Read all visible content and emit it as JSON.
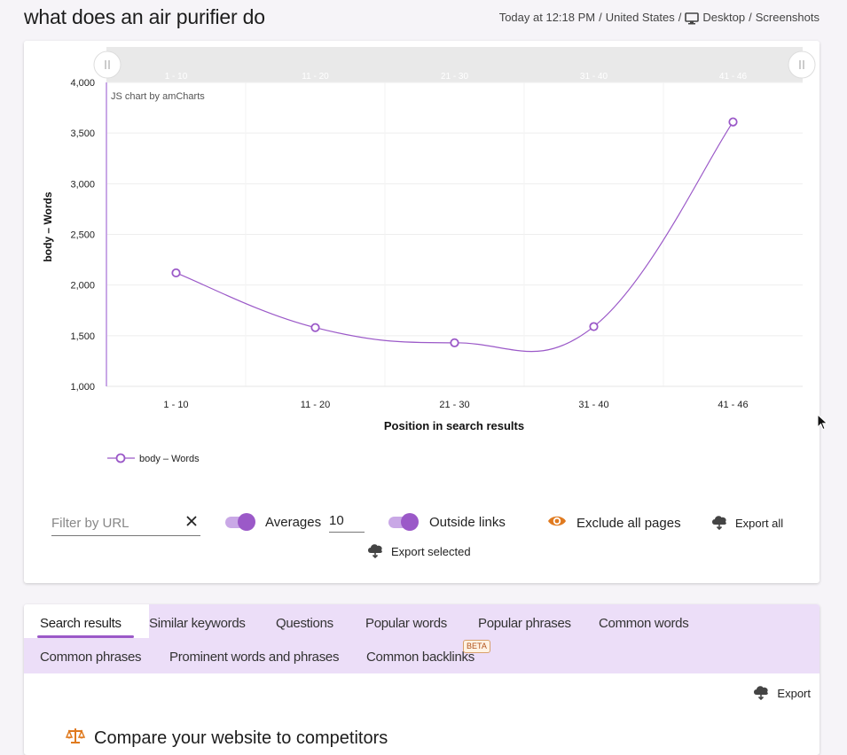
{
  "header": {
    "title": "what does an air purifier do",
    "meta_time": "Today at 12:18 PM",
    "meta_country": "United States",
    "meta_device": "Desktop",
    "meta_view": "Screenshots",
    "separator": "/"
  },
  "colors": {
    "accent": "#9b59c8",
    "accent_light": "#c9a8e6",
    "tab_bg": "#ecdef8",
    "orange": "#e07a1f"
  },
  "chart_data": {
    "type": "line",
    "credit": "JS chart by amCharts",
    "categories": [
      "1 - 10",
      "11 - 20",
      "21 - 30",
      "31 - 40",
      "41 - 46"
    ],
    "series": [
      {
        "name": "body – Words",
        "values": [
          2120,
          1580,
          1430,
          1590,
          3610
        ]
      }
    ],
    "ylim": [
      1000,
      4000
    ],
    "yticks": [
      1000,
      1500,
      2000,
      2500,
      3000,
      3500,
      4000
    ],
    "ytick_labels": [
      "1,000",
      "1,500",
      "2,000",
      "2,500",
      "3,000",
      "3,500",
      "4,000"
    ],
    "xlabel": "Position in search results",
    "ylabel": "body – Words",
    "scrollbar_labels": [
      "1 - 10",
      "11 - 20",
      "21 - 30",
      "31 - 40",
      "41 - 46"
    ],
    "legend_label": "body – Words",
    "legend_position": "bottom-left",
    "grid": true
  },
  "controls": {
    "filter_placeholder": "Filter by URL",
    "averages_label": "Averages",
    "averages_value": "10",
    "outside_links_label": "Outside links",
    "exclude_label": "Exclude all pages",
    "export_all_label": "Export all",
    "export_selected_label": "Export selected"
  },
  "tabs": [
    {
      "label": "Search results",
      "active": true
    },
    {
      "label": "Similar keywords"
    },
    {
      "label": "Questions"
    },
    {
      "label": "Popular words"
    },
    {
      "label": "Popular phrases"
    },
    {
      "label": "Common words"
    },
    {
      "label": "Common phrases"
    },
    {
      "label": "Prominent words and phrases"
    },
    {
      "label": "Common backlinks"
    }
  ],
  "beta_badge": "BETA",
  "export_label": "Export",
  "compare_title": "Compare your website to competitors"
}
